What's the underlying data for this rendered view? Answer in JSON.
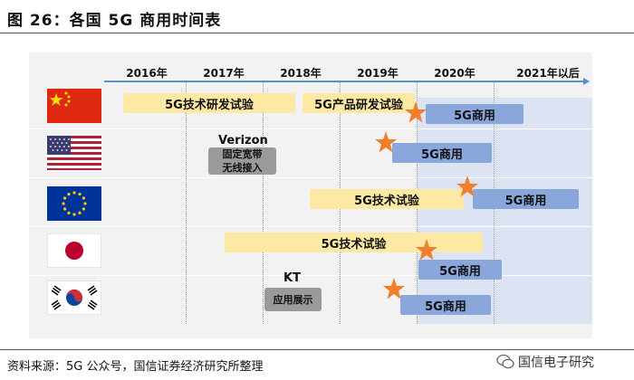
{
  "title": "图 26：各国 5G 商用时间表",
  "years": [
    "2016年",
    "2017年",
    "2018年",
    "2019年",
    "2020年",
    "2021年以后"
  ],
  "colors": {
    "yellow_bar": "#fde9a3",
    "blue_bar": "#8aa7dc",
    "gray_box": "#9a9a9a",
    "star": "#ef7f2a",
    "axis": "#5b8bd3"
  },
  "rows": {
    "china": {
      "flag": "china-flag",
      "bar1": "5G技术研发试验",
      "bar2": "5G产品研发试验",
      "bar3": "5G商用"
    },
    "usa": {
      "flag": "usa-flag",
      "company": "Verizon",
      "box_line1": "固定宽带",
      "box_line2": "无线接入",
      "bar": "5G商用"
    },
    "eu": {
      "flag": "eu-flag",
      "bar1": "5G技术试验",
      "bar2": "5G商用"
    },
    "japan": {
      "flag": "japan-flag",
      "bar1": "5G技术试验",
      "bar2": "5G商用"
    },
    "korea": {
      "flag": "korea-flag",
      "company": "KT",
      "box": "应用展示",
      "bar": "5G商用"
    }
  },
  "source": "资料来源：5G 公众号，国信证券经济研究所整理",
  "watermark": "国信电子研究"
}
